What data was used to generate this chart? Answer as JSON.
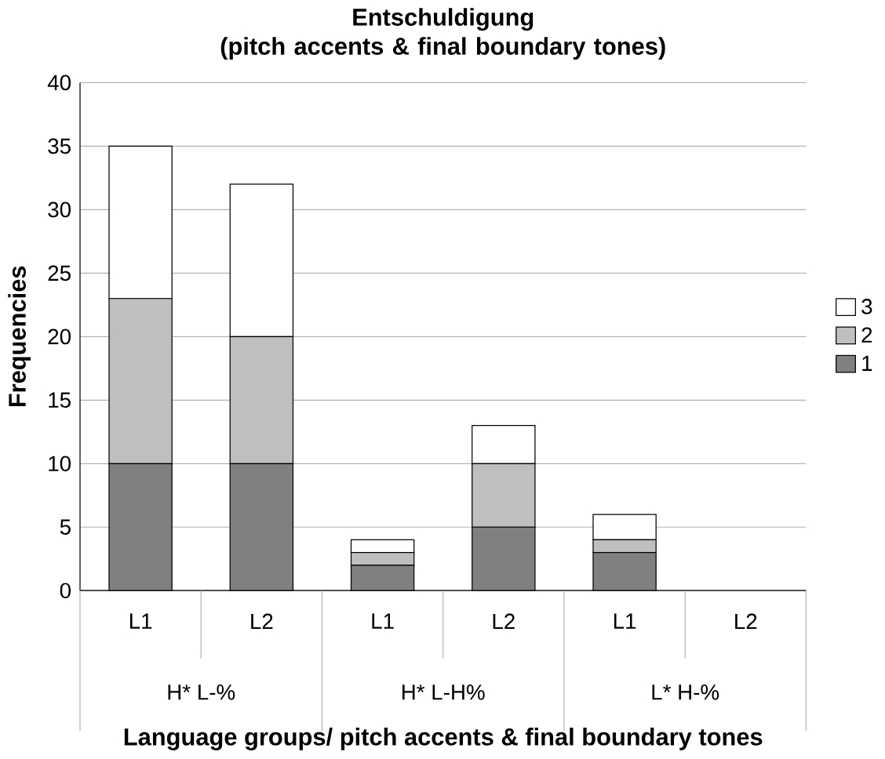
{
  "chart_data": {
    "type": "bar",
    "stacked": true,
    "title": "Entschuldigung\n(pitch accents & final boundary tones)",
    "xlabel": "Language groups/ pitch accents & final boundary tones",
    "ylabel": "Frequencies",
    "categories": [
      "L1",
      "L2",
      "L1",
      "L2",
      "L1",
      "L2"
    ],
    "annotations": [
      "H* L-%",
      "H* L-H%",
      "L* H-%"
    ],
    "series": [
      {
        "name": "1",
        "color": "#808080",
        "values": [
          10,
          10,
          2,
          5,
          3,
          null
        ]
      },
      {
        "name": "2",
        "color": "#bfbfbf",
        "values": [
          13,
          10,
          1,
          5,
          1,
          null
        ]
      },
      {
        "name": "3",
        "color": "#ffffff",
        "values": [
          12,
          12,
          1,
          3,
          2,
          null
        ]
      }
    ],
    "ylim": [
      0,
      40
    ],
    "yticks": [
      0,
      5,
      10,
      15,
      20,
      25,
      30,
      35,
      40
    ],
    "grid": "y",
    "legend": "right"
  }
}
